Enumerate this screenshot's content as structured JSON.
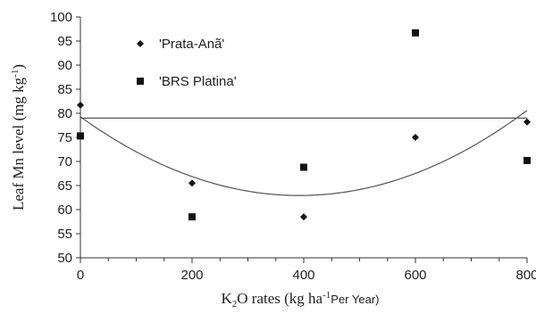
{
  "chart_data": {
    "type": "scatter",
    "xlim": [
      0,
      800
    ],
    "ylim": [
      50,
      100
    ],
    "x_ticks": [
      "0",
      "200",
      "400",
      "600",
      "800"
    ],
    "y_ticks": [
      "50",
      "55",
      "60",
      "65",
      "70",
      "75",
      "80",
      "85",
      "90",
      "95",
      "100"
    ],
    "xlabel": {
      "prefix": "K",
      "sub": "2",
      "mid": "O rates (kg ha",
      "sup": "-1",
      "suffix": "Per Year)"
    },
    "ylabel": "Leaf Mn level (mg kg",
    "ylabel_sup": "-1",
    "ylabel_end": ")",
    "legend_position": "top-left",
    "grid": false,
    "series": [
      {
        "name": "'Prata-Anã'",
        "marker": "diamond",
        "color": "#111111",
        "points": [
          [
            0,
            81.7
          ],
          [
            200,
            65.5
          ],
          [
            400,
            58.5
          ],
          [
            600,
            75.0
          ],
          [
            800,
            78.2
          ]
        ]
      },
      {
        "name": "'BRS Platina'",
        "marker": "square",
        "color": "#111111",
        "points": [
          [
            0,
            75.3
          ],
          [
            200,
            58.5
          ],
          [
            400,
            68.8
          ],
          [
            600,
            96.7
          ],
          [
            800,
            70.2
          ]
        ]
      }
    ],
    "fits": [
      {
        "type": "horizontal",
        "y": 79.0
      },
      {
        "type": "quadratic",
        "a": 0.0001062,
        "b": -0.0833,
        "c": 79.27
      }
    ]
  }
}
